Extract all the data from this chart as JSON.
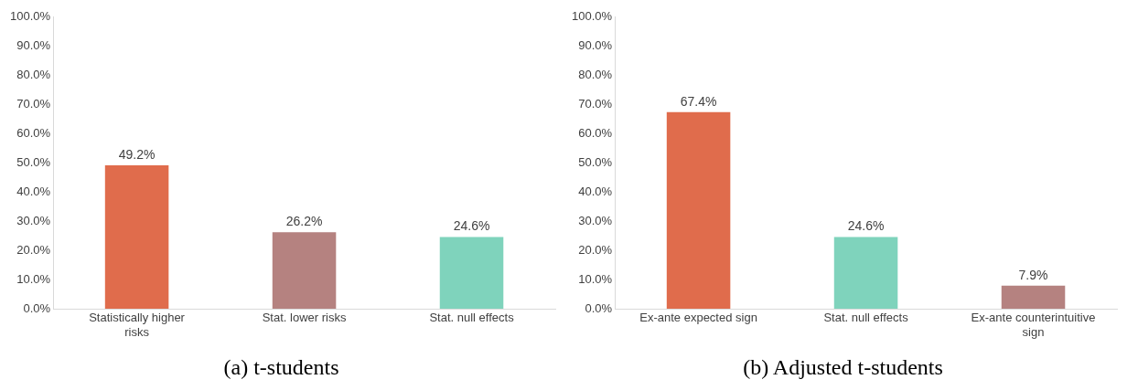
{
  "chart_data": [
    {
      "type": "bar",
      "title": "(a) t-students",
      "categories": [
        "Statistically higher risks",
        "Stat. lower risks",
        "Stat. null effects"
      ],
      "values": [
        49.2,
        26.2,
        24.6
      ],
      "colors": [
        "#e06c4c",
        "#b58280",
        "#7fd3bc"
      ],
      "value_labels": [
        "49.2%",
        "26.2%",
        "24.6%"
      ],
      "ylim": [
        0,
        100
      ],
      "yticks": [
        {
          "value": 0,
          "label": "0.0%"
        },
        {
          "value": 10,
          "label": "10.0%"
        },
        {
          "value": 20,
          "label": "20.0%"
        },
        {
          "value": 30,
          "label": "30.0%"
        },
        {
          "value": 40,
          "label": "40.0%"
        },
        {
          "value": 50,
          "label": "50.0%"
        },
        {
          "value": 60,
          "label": "60.0%"
        },
        {
          "value": 70,
          "label": "70.0%"
        },
        {
          "value": 80,
          "label": "80.0%"
        },
        {
          "value": 90,
          "label": "90.0%"
        },
        {
          "value": 100,
          "label": "100.0%"
        }
      ],
      "grid": false,
      "legend": false
    },
    {
      "type": "bar",
      "title": "(b) Adjusted t-students",
      "categories": [
        "Ex-ante expected sign",
        "Stat. null effects",
        "Ex-ante counterintuitive sign"
      ],
      "values": [
        67.4,
        24.6,
        7.9
      ],
      "colors": [
        "#e06c4c",
        "#7fd3bc",
        "#b58280"
      ],
      "value_labels": [
        "67.4%",
        "24.6%",
        "7.9%"
      ],
      "ylim": [
        0,
        100
      ],
      "yticks": [
        {
          "value": 0,
          "label": "0.0%"
        },
        {
          "value": 10,
          "label": "10.0%"
        },
        {
          "value": 20,
          "label": "20.0%"
        },
        {
          "value": 30,
          "label": "30.0%"
        },
        {
          "value": 40,
          "label": "40.0%"
        },
        {
          "value": 50,
          "label": "50.0%"
        },
        {
          "value": 60,
          "label": "60.0%"
        },
        {
          "value": 70,
          "label": "70.0%"
        },
        {
          "value": 80,
          "label": "80.0%"
        },
        {
          "value": 90,
          "label": "90.0%"
        },
        {
          "value": 100,
          "label": "100.0%"
        }
      ],
      "grid": false,
      "legend": false
    }
  ]
}
